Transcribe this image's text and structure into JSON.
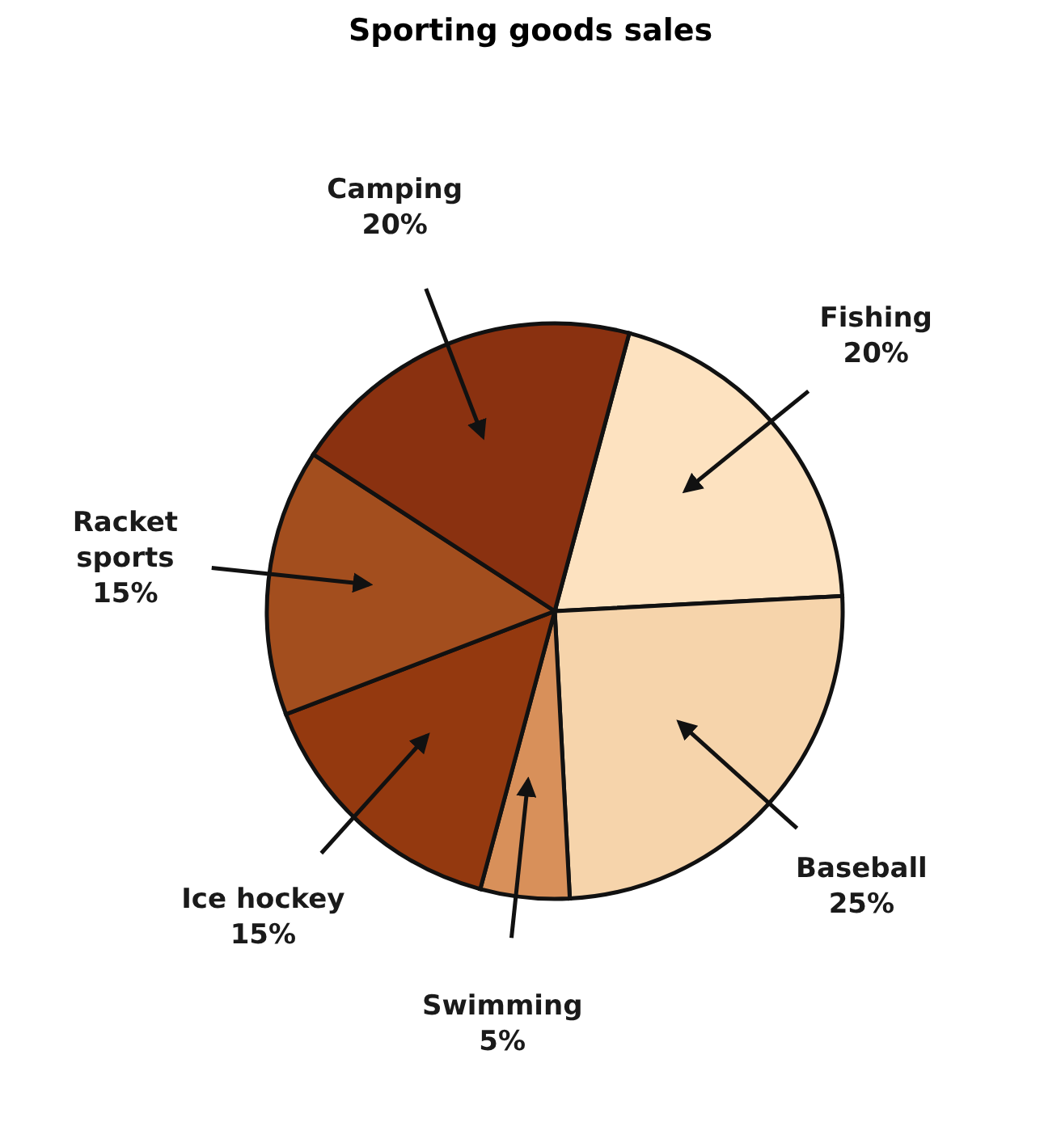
{
  "chart_data": {
    "type": "pie",
    "title": "Sporting goods sales",
    "categories": [
      "Fishing",
      "Baseball",
      "Swimming",
      "Ice hockey",
      "Racket sports",
      "Camping"
    ],
    "values": [
      20,
      25,
      5,
      15,
      15,
      20
    ],
    "value_labels": [
      "20%",
      "25%",
      "5%",
      "15%",
      "15%",
      "20%"
    ],
    "colors": [
      "#fde2c0",
      "#f6d4ab",
      "#d8905a",
      "#94390f",
      "#a34e1e",
      "#8a3110"
    ]
  }
}
